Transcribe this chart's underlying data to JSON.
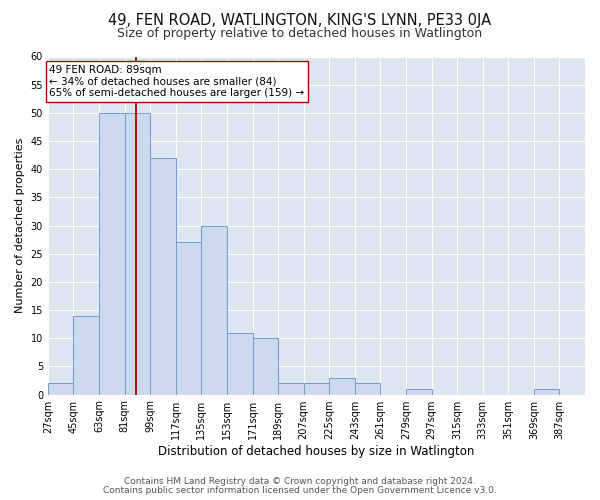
{
  "title": "49, FEN ROAD, WATLINGTON, KING'S LYNN, PE33 0JA",
  "subtitle": "Size of property relative to detached houses in Watlington",
  "xlabel": "Distribution of detached houses by size in Watlington",
  "ylabel": "Number of detached properties",
  "bar_left_edges": [
    27,
    45,
    63,
    81,
    99,
    117,
    135,
    153,
    171,
    189,
    207,
    225,
    243,
    261,
    279,
    297,
    315,
    333,
    351,
    369
  ],
  "bar_heights": [
    2,
    14,
    50,
    50,
    42,
    27,
    30,
    11,
    10,
    2,
    2,
    3,
    2,
    0,
    1,
    0,
    0,
    0,
    0,
    1
  ],
  "bin_width": 18,
  "bar_color": "#ccd9ee",
  "bar_edge_color": "#7799cc",
  "vline_x": 89,
  "vline_color": "#aa0000",
  "annotation_text": "49 FEN ROAD: 89sqm\n← 34% of detached houses are smaller (84)\n65% of semi-detached houses are larger (159) →",
  "annotation_box_color": "#ffffff",
  "annotation_box_edge_color": "#aa0000",
  "tick_labels": [
    "27sqm",
    "45sqm",
    "63sqm",
    "81sqm",
    "99sqm",
    "117sqm",
    "135sqm",
    "153sqm",
    "171sqm",
    "189sqm",
    "207sqm",
    "225sqm",
    "243sqm",
    "261sqm",
    "279sqm",
    "297sqm",
    "315sqm",
    "333sqm",
    "351sqm",
    "369sqm",
    "387sqm"
  ],
  "ylim": [
    0,
    60
  ],
  "yticks": [
    0,
    5,
    10,
    15,
    20,
    25,
    30,
    35,
    40,
    45,
    50,
    55,
    60
  ],
  "fig_background_color": "#ffffff",
  "plot_bg_color": "#dde6f0",
  "grid_color": "#ffffff",
  "footer_line1": "Contains HM Land Registry data © Crown copyright and database right 2024.",
  "footer_line2": "Contains public sector information licensed under the Open Government Licence v3.0.",
  "title_fontsize": 10.5,
  "subtitle_fontsize": 9,
  "xlabel_fontsize": 8.5,
  "ylabel_fontsize": 8,
  "tick_fontsize": 7,
  "annotation_fontsize": 7.5,
  "footer_fontsize": 6.5
}
